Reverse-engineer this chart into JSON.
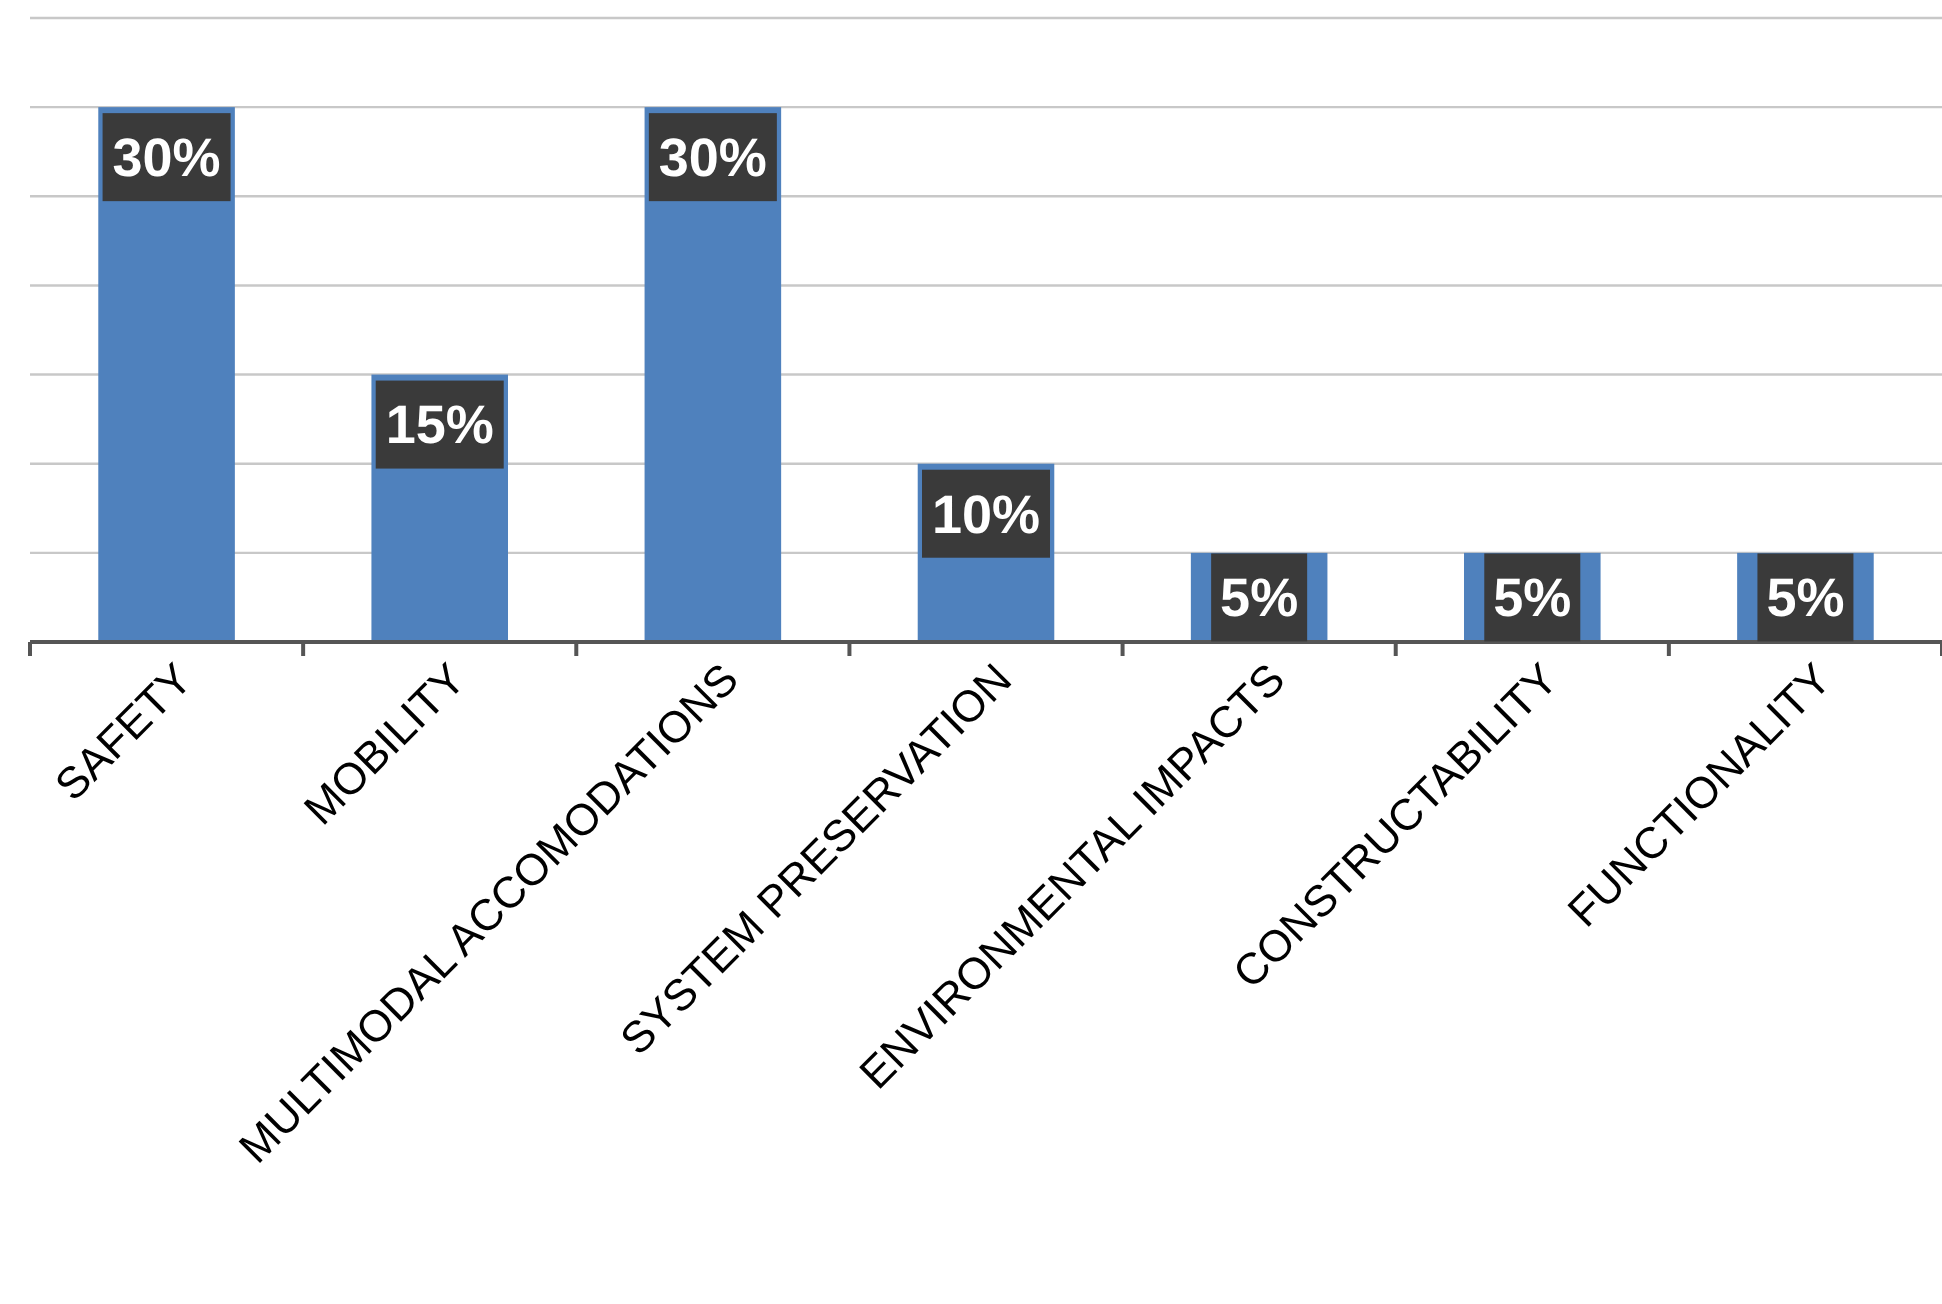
{
  "chart_data": {
    "type": "bar",
    "categories": [
      "SAFETY",
      "MOBILITY",
      "MULTIMODAL ACCOMODATIONS",
      "SYSTEM PRESERVATION",
      "ENVIRONMENTAL IMPACTS",
      "CONSTRUCTABILITY",
      "FUNCTIONALITY"
    ],
    "values": [
      30,
      15,
      30,
      10,
      5,
      5,
      5
    ],
    "value_labels": [
      "30%",
      "15%",
      "30%",
      "10%",
      "5%",
      "5%",
      "5%"
    ],
    "color": "#4f81bd",
    "ylim": [
      0,
      35
    ],
    "yticks": [
      {
        "value": 0,
        "label": null
      },
      {
        "value": 5,
        "label": null
      },
      {
        "value": 10,
        "label": null
      },
      {
        "value": 15,
        "label": null
      },
      {
        "value": 20,
        "label": null
      },
      {
        "value": 25,
        "label": null
      },
      {
        "value": 30,
        "label": null
      },
      {
        "value": 35,
        "label": null
      }
    ],
    "grid": "y",
    "tick_labels": "x"
  }
}
